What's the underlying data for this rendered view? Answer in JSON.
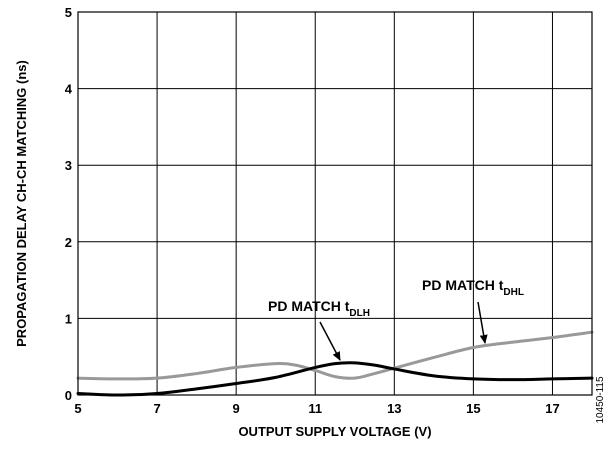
{
  "chart_data": {
    "type": "line",
    "xlabel": "OUTPUT SUPPLY VOLTAGE (V)",
    "ylabel": "PROPAGATION DELAY CH-CH MATCHING (ns)",
    "xlim": [
      5,
      18
    ],
    "ylim": [
      0,
      5
    ],
    "x_ticks": [
      5,
      7,
      9,
      11,
      13,
      15,
      17
    ],
    "y_ticks": [
      0,
      1,
      2,
      3,
      4,
      5
    ],
    "grid": true,
    "series": [
      {
        "name": "PD MATCH tDLH",
        "color": "#000000",
        "x": [
          5,
          6,
          7,
          8,
          9,
          10,
          11,
          11.5,
          12,
          12.5,
          13,
          14,
          15,
          16,
          17,
          18
        ],
        "y": [
          0.02,
          0.0,
          0.02,
          0.08,
          0.15,
          0.23,
          0.36,
          0.41,
          0.42,
          0.39,
          0.34,
          0.25,
          0.21,
          0.2,
          0.21,
          0.22
        ]
      },
      {
        "name": "PD MATCH tDHL",
        "color": "#999999",
        "x": [
          5,
          6,
          7,
          8,
          9,
          10,
          10.5,
          11,
          11.5,
          12,
          12.5,
          13,
          14,
          15,
          16,
          17,
          18
        ],
        "y": [
          0.22,
          0.21,
          0.22,
          0.28,
          0.36,
          0.41,
          0.39,
          0.32,
          0.24,
          0.22,
          0.28,
          0.35,
          0.49,
          0.62,
          0.69,
          0.75,
          0.82
        ]
      }
    ],
    "annotations": [
      {
        "prefix": "PD MATCH t",
        "sub": "DLH",
        "points_to": {
          "x": 12,
          "y": 0.42
        }
      },
      {
        "prefix": "PD MATCH t",
        "sub": "DHL",
        "points_to": {
          "x": 15.5,
          "y": 0.66
        }
      }
    ]
  },
  "figure_id": "10450-115"
}
